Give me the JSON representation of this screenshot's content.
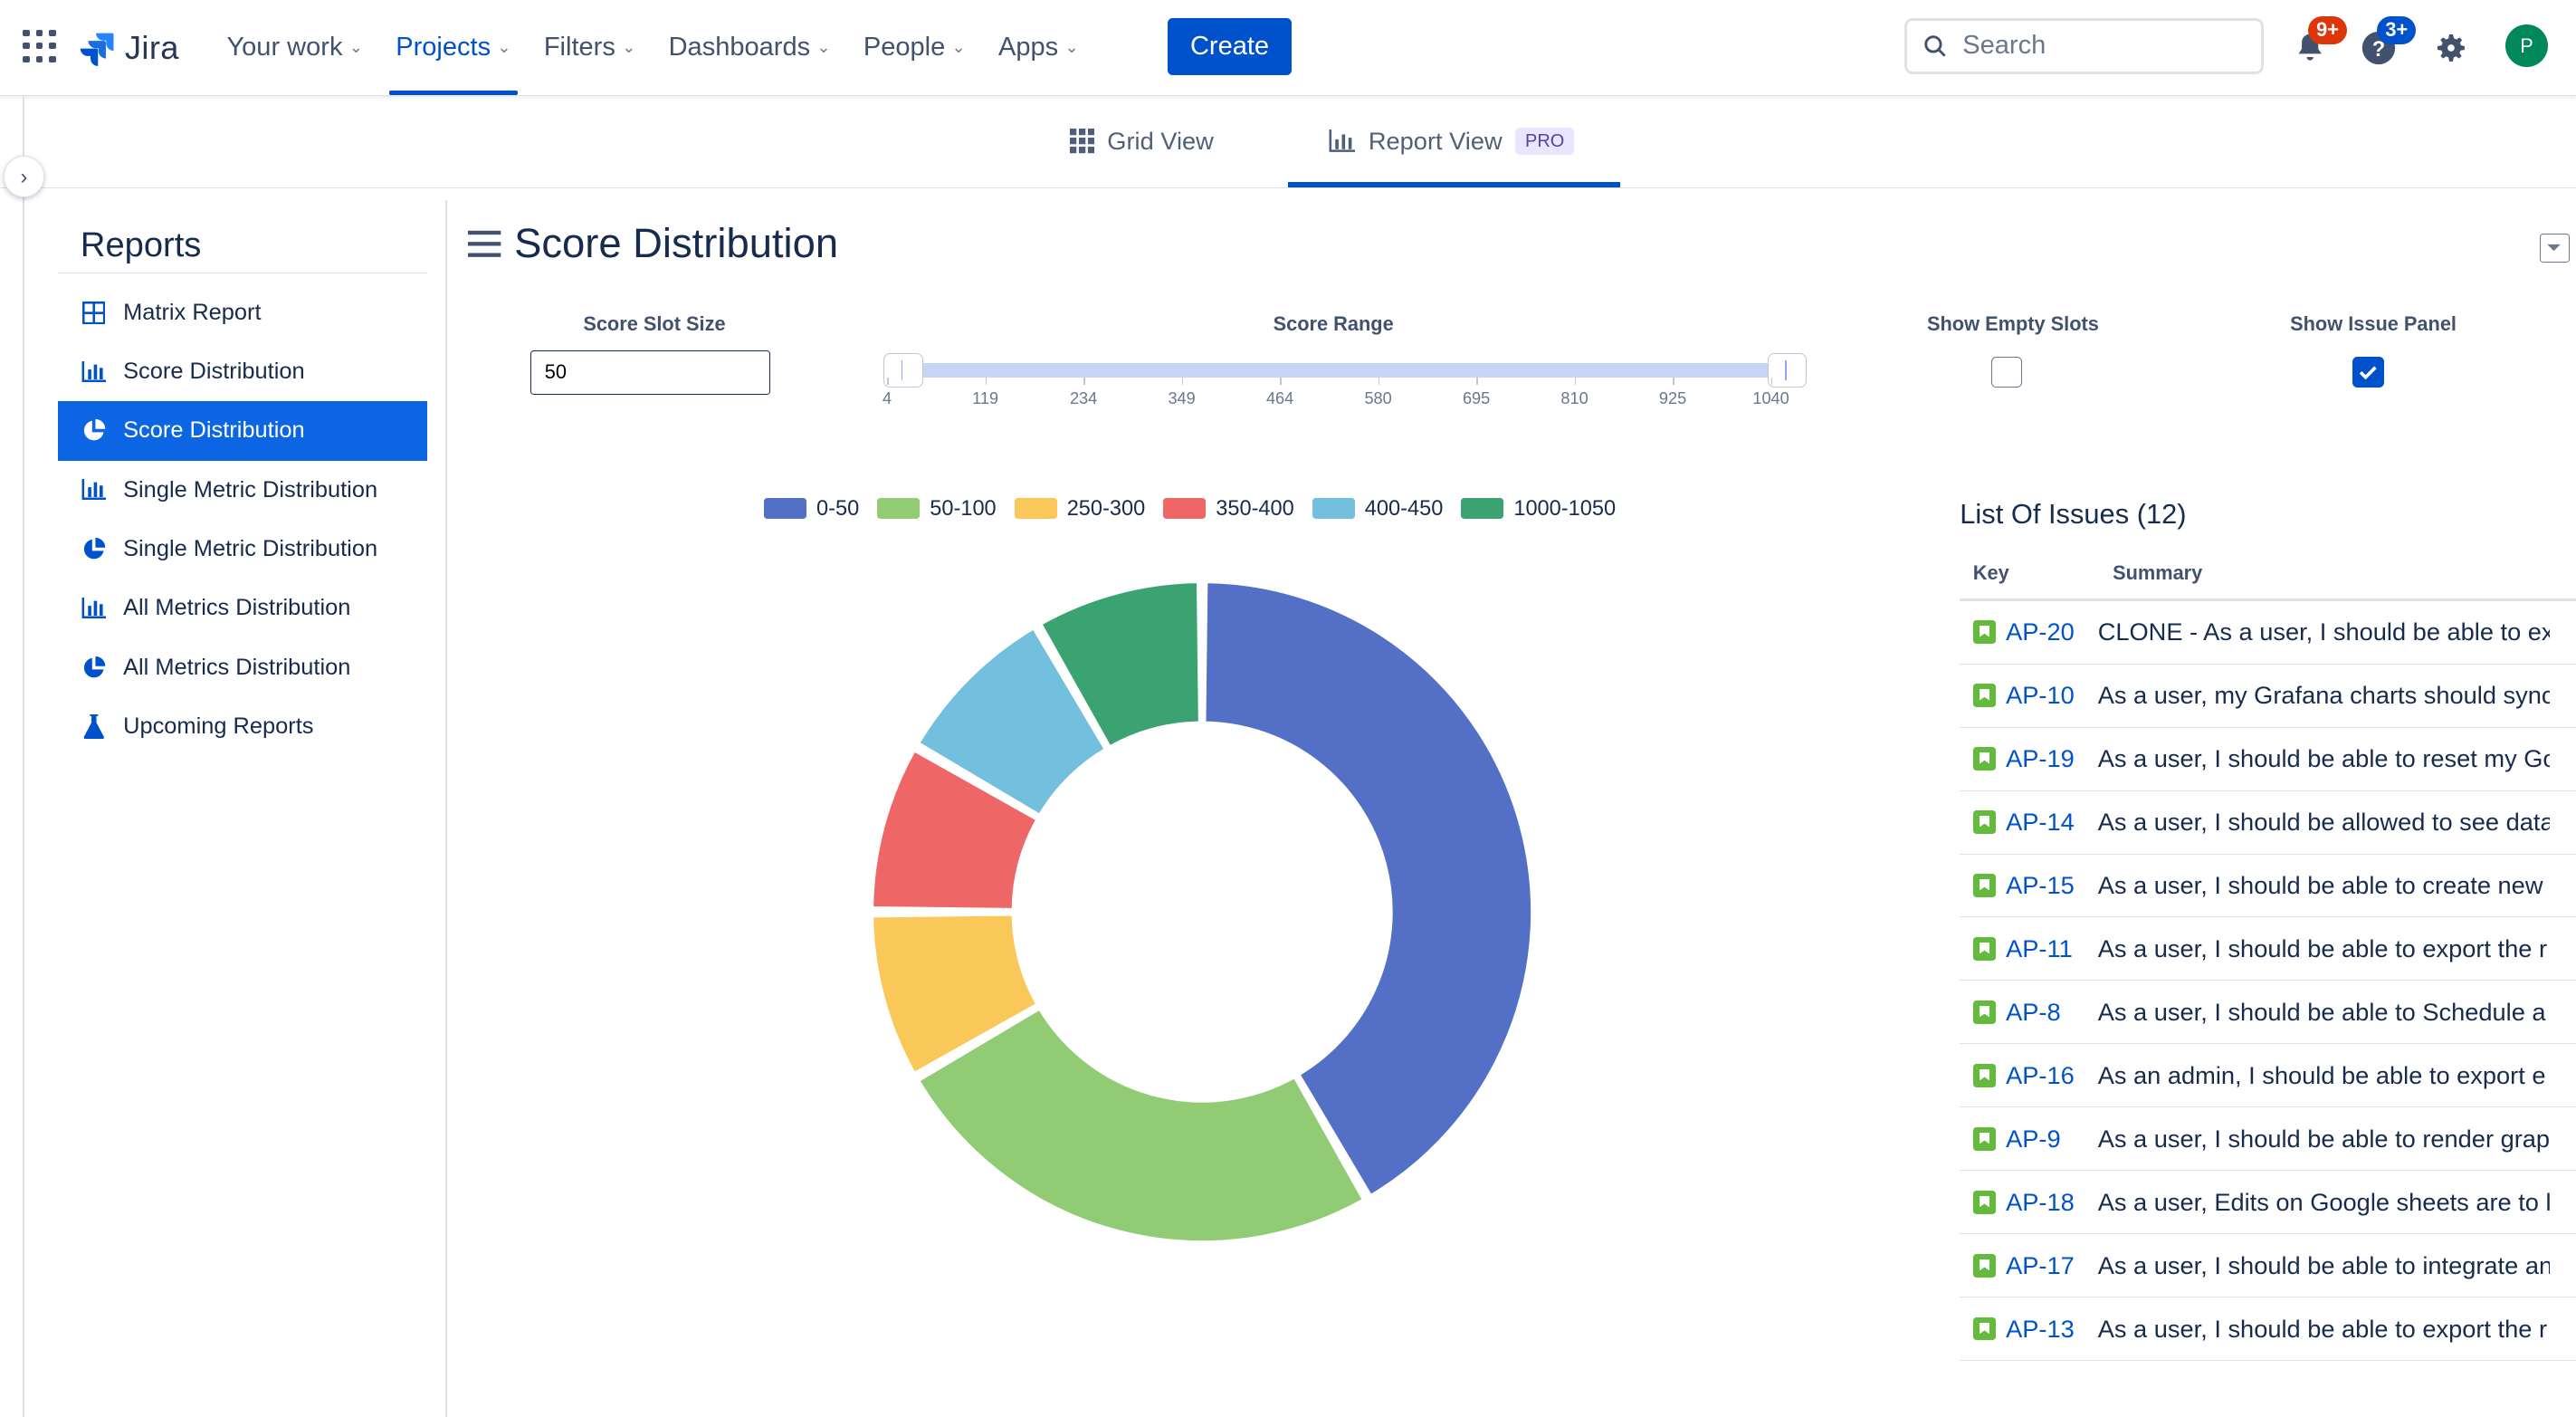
{
  "nav": {
    "logo": "Jira",
    "items": [
      {
        "label": "Your work"
      },
      {
        "label": "Projects"
      },
      {
        "label": "Filters"
      },
      {
        "label": "Dashboards"
      },
      {
        "label": "People"
      },
      {
        "label": "Apps"
      }
    ],
    "create_label": "Create",
    "search_placeholder": "Search",
    "notifications_badge": "9+",
    "help_badge": "3+",
    "avatar_initial": "P"
  },
  "view_tabs": {
    "grid_label": "Grid View",
    "report_label": "Report View",
    "pro_badge": "PRO"
  },
  "sidebar": {
    "title": "Reports",
    "items": [
      {
        "label": "Matrix Report",
        "icon": "matrix-icon"
      },
      {
        "label": "Score Distribution",
        "icon": "bar-chart-icon"
      },
      {
        "label": "Score Distribution",
        "icon": "pie-chart-icon"
      },
      {
        "label": "Single Metric Distribution",
        "icon": "bar-chart-icon"
      },
      {
        "label": "Single Metric Distribution",
        "icon": "pie-chart-icon"
      },
      {
        "label": "All Metrics Distribution",
        "icon": "bar-chart-icon"
      },
      {
        "label": "All Metrics Distribution",
        "icon": "pie-chart-icon"
      },
      {
        "label": "Upcoming Reports",
        "icon": "flask-icon"
      }
    ]
  },
  "report": {
    "title": "Score Distribution",
    "slot_size_label": "Score Slot Size",
    "slot_size_value": "50",
    "range_label": "Score Range",
    "range_ticks": [
      "4",
      "119",
      "234",
      "349",
      "464",
      "580",
      "695",
      "810",
      "925",
      "1040"
    ],
    "show_empty_label": "Show Empty Slots",
    "show_empty_checked": false,
    "show_panel_label": "Show Issue Panel",
    "show_panel_checked": true
  },
  "chart_data": {
    "type": "pie",
    "donut": true,
    "categories": [
      "0-50",
      "50-100",
      "250-300",
      "350-400",
      "400-450",
      "1000-1050"
    ],
    "values": [
      5,
      3,
      1,
      1,
      1,
      1
    ],
    "colors": [
      "#5470C6",
      "#91CC75",
      "#FAC858",
      "#EE6666",
      "#73C0DE",
      "#3BA272"
    ],
    "legend_position": "top"
  },
  "issues": {
    "title": "List Of Issues (12)",
    "columns": [
      "Key",
      "Summary"
    ],
    "rows": [
      {
        "key": "AP-20",
        "summary": "CLONE - As a user, I should be able to ex"
      },
      {
        "key": "AP-10",
        "summary": "As a user, my Grafana charts should sync"
      },
      {
        "key": "AP-19",
        "summary": "As a user, I should be able to reset my Go"
      },
      {
        "key": "AP-14",
        "summary": "As a user, I should be allowed to see data"
      },
      {
        "key": "AP-15",
        "summary": "As a user, I should be able to create new"
      },
      {
        "key": "AP-11",
        "summary": "As a user, I should be able to export the r"
      },
      {
        "key": "AP-8",
        "summary": "As a user, I should be able to Schedule a"
      },
      {
        "key": "AP-16",
        "summary": "As an admin, I should be able to export e"
      },
      {
        "key": "AP-9",
        "summary": "As a user, I should be able to render grap"
      },
      {
        "key": "AP-18",
        "summary": "As a user, Edits on Google sheets are to l"
      },
      {
        "key": "AP-17",
        "summary": "As a user, I should be able to integrate an"
      },
      {
        "key": "AP-13",
        "summary": "As a user, I should be able to export the r"
      }
    ]
  }
}
